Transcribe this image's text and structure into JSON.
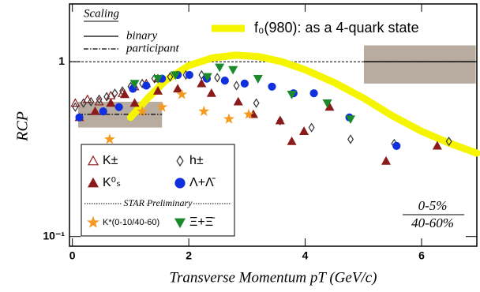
{
  "chart_data": {
    "type": "scatter",
    "log_y": true,
    "xlabel": "Transverse Momentum pT (GeV/c)",
    "ylabel": "RCP",
    "xlim": [
      -0.05,
      6.95
    ],
    "ylim": [
      0.088,
      2.14
    ],
    "xticks": [
      0,
      2,
      4,
      6
    ],
    "yticks": [
      {
        "value": 0.1,
        "label": "10⁻¹"
      },
      1
    ],
    "hline": 1,
    "scaling_title": "Scaling",
    "bands": [
      {
        "name": "participant",
        "x": [
          0.1,
          1.54
        ],
        "y": [
          0.42,
          0.59
        ],
        "level": 0.5
      },
      {
        "name": "binary",
        "x": [
          5.01,
          6.93
        ],
        "y": [
          0.75,
          1.24
        ],
        "level": 1
      }
    ],
    "curve": {
      "name": "f₀(980): as a 4-quark state",
      "color": "#f5f500",
      "x": [
        1.0,
        1.3,
        1.6,
        2.0,
        2.4,
        2.8,
        3.2,
        3.6,
        4.0,
        4.5,
        5.0,
        5.5,
        6.0,
        6.5,
        6.95
      ],
      "y": [
        0.48,
        0.62,
        0.78,
        0.95,
        1.05,
        1.09,
        1.07,
        1.0,
        0.9,
        0.76,
        0.62,
        0.49,
        0.4,
        0.34,
        0.3
      ]
    },
    "series": [
      {
        "name": "K±",
        "color": "#8b1a1a",
        "marker": "triangle",
        "filled": false,
        "x": [
          0.05,
          0.26,
          0.46,
          0.66,
          0.86,
          1.07,
          1.27,
          1.47
        ],
        "values": [
          0.58,
          0.61,
          0.59,
          0.64,
          0.66,
          0.72,
          0.75,
          0.8
        ]
      },
      {
        "name": "h±",
        "color": "#333333",
        "marker": "diamond",
        "filled": false,
        "x": [
          0.05,
          0.19,
          0.32,
          0.46,
          0.59,
          0.73,
          0.86,
          1.0,
          1.2,
          1.41,
          1.68,
          1.95,
          2.22,
          2.49,
          2.82,
          3.16,
          3.57,
          4.11,
          4.78,
          5.53,
          6.47
        ],
        "values": [
          0.55,
          0.58,
          0.59,
          0.61,
          0.63,
          0.66,
          0.68,
          0.72,
          0.75,
          0.8,
          0.82,
          0.84,
          0.84,
          0.81,
          0.73,
          0.58,
          0.46,
          0.42,
          0.36,
          0.34,
          0.35
        ]
      },
      {
        "name": "K⁰ₛ",
        "color": "#8b1a1a",
        "marker": "triangle",
        "filled": true,
        "x": [
          0.12,
          0.39,
          0.66,
          0.9,
          1.07,
          1.47,
          1.81,
          2.22,
          2.39,
          2.85,
          3.11,
          3.57,
          3.77,
          3.98,
          4.42,
          5.39,
          6.27
        ],
        "values": [
          0.48,
          0.52,
          0.58,
          0.65,
          0.58,
          0.68,
          0.7,
          0.75,
          0.66,
          0.59,
          0.5,
          0.46,
          0.35,
          0.4,
          0.55,
          0.27,
          0.33
        ]
      },
      {
        "name": "Λ+Λ̄",
        "color": "#1030e0",
        "marker": "circle",
        "filled": true,
        "x": [
          0.12,
          0.53,
          0.8,
          1.04,
          1.27,
          1.54,
          1.81,
          2.01,
          2.31,
          2.62,
          2.96,
          3.43,
          3.8,
          4.15,
          4.76,
          5.57
        ],
        "values": [
          0.48,
          0.52,
          0.55,
          0.7,
          0.73,
          0.8,
          0.84,
          0.84,
          0.8,
          0.78,
          0.75,
          0.72,
          0.66,
          0.66,
          0.48,
          0.33
        ]
      },
      {
        "name": "K*(0-10/40-60)",
        "color": "#f59a20",
        "marker": "star",
        "filled": true,
        "x": [
          0.64,
          1.2,
          1.54,
          1.88,
          2.26,
          2.69,
          3.03
        ],
        "values": [
          0.36,
          0.52,
          0.55,
          0.65,
          0.52,
          0.47,
          0.5
        ]
      },
      {
        "name": "Ξ+Ξ̄",
        "color": "#1a8a2a",
        "marker": "down",
        "filled": true,
        "x": [
          1.07,
          1.47,
          1.77,
          2.32,
          2.53,
          2.76,
          3.19,
          3.77,
          4.38,
          4.78
        ],
        "values": [
          0.75,
          0.8,
          0.84,
          0.82,
          0.93,
          0.9,
          0.8,
          0.65,
          0.58,
          0.47
        ]
      }
    ],
    "annotation": "STAR Preliminary",
    "ratio_top": "0-5%",
    "ratio_bottom": "40-60%"
  }
}
